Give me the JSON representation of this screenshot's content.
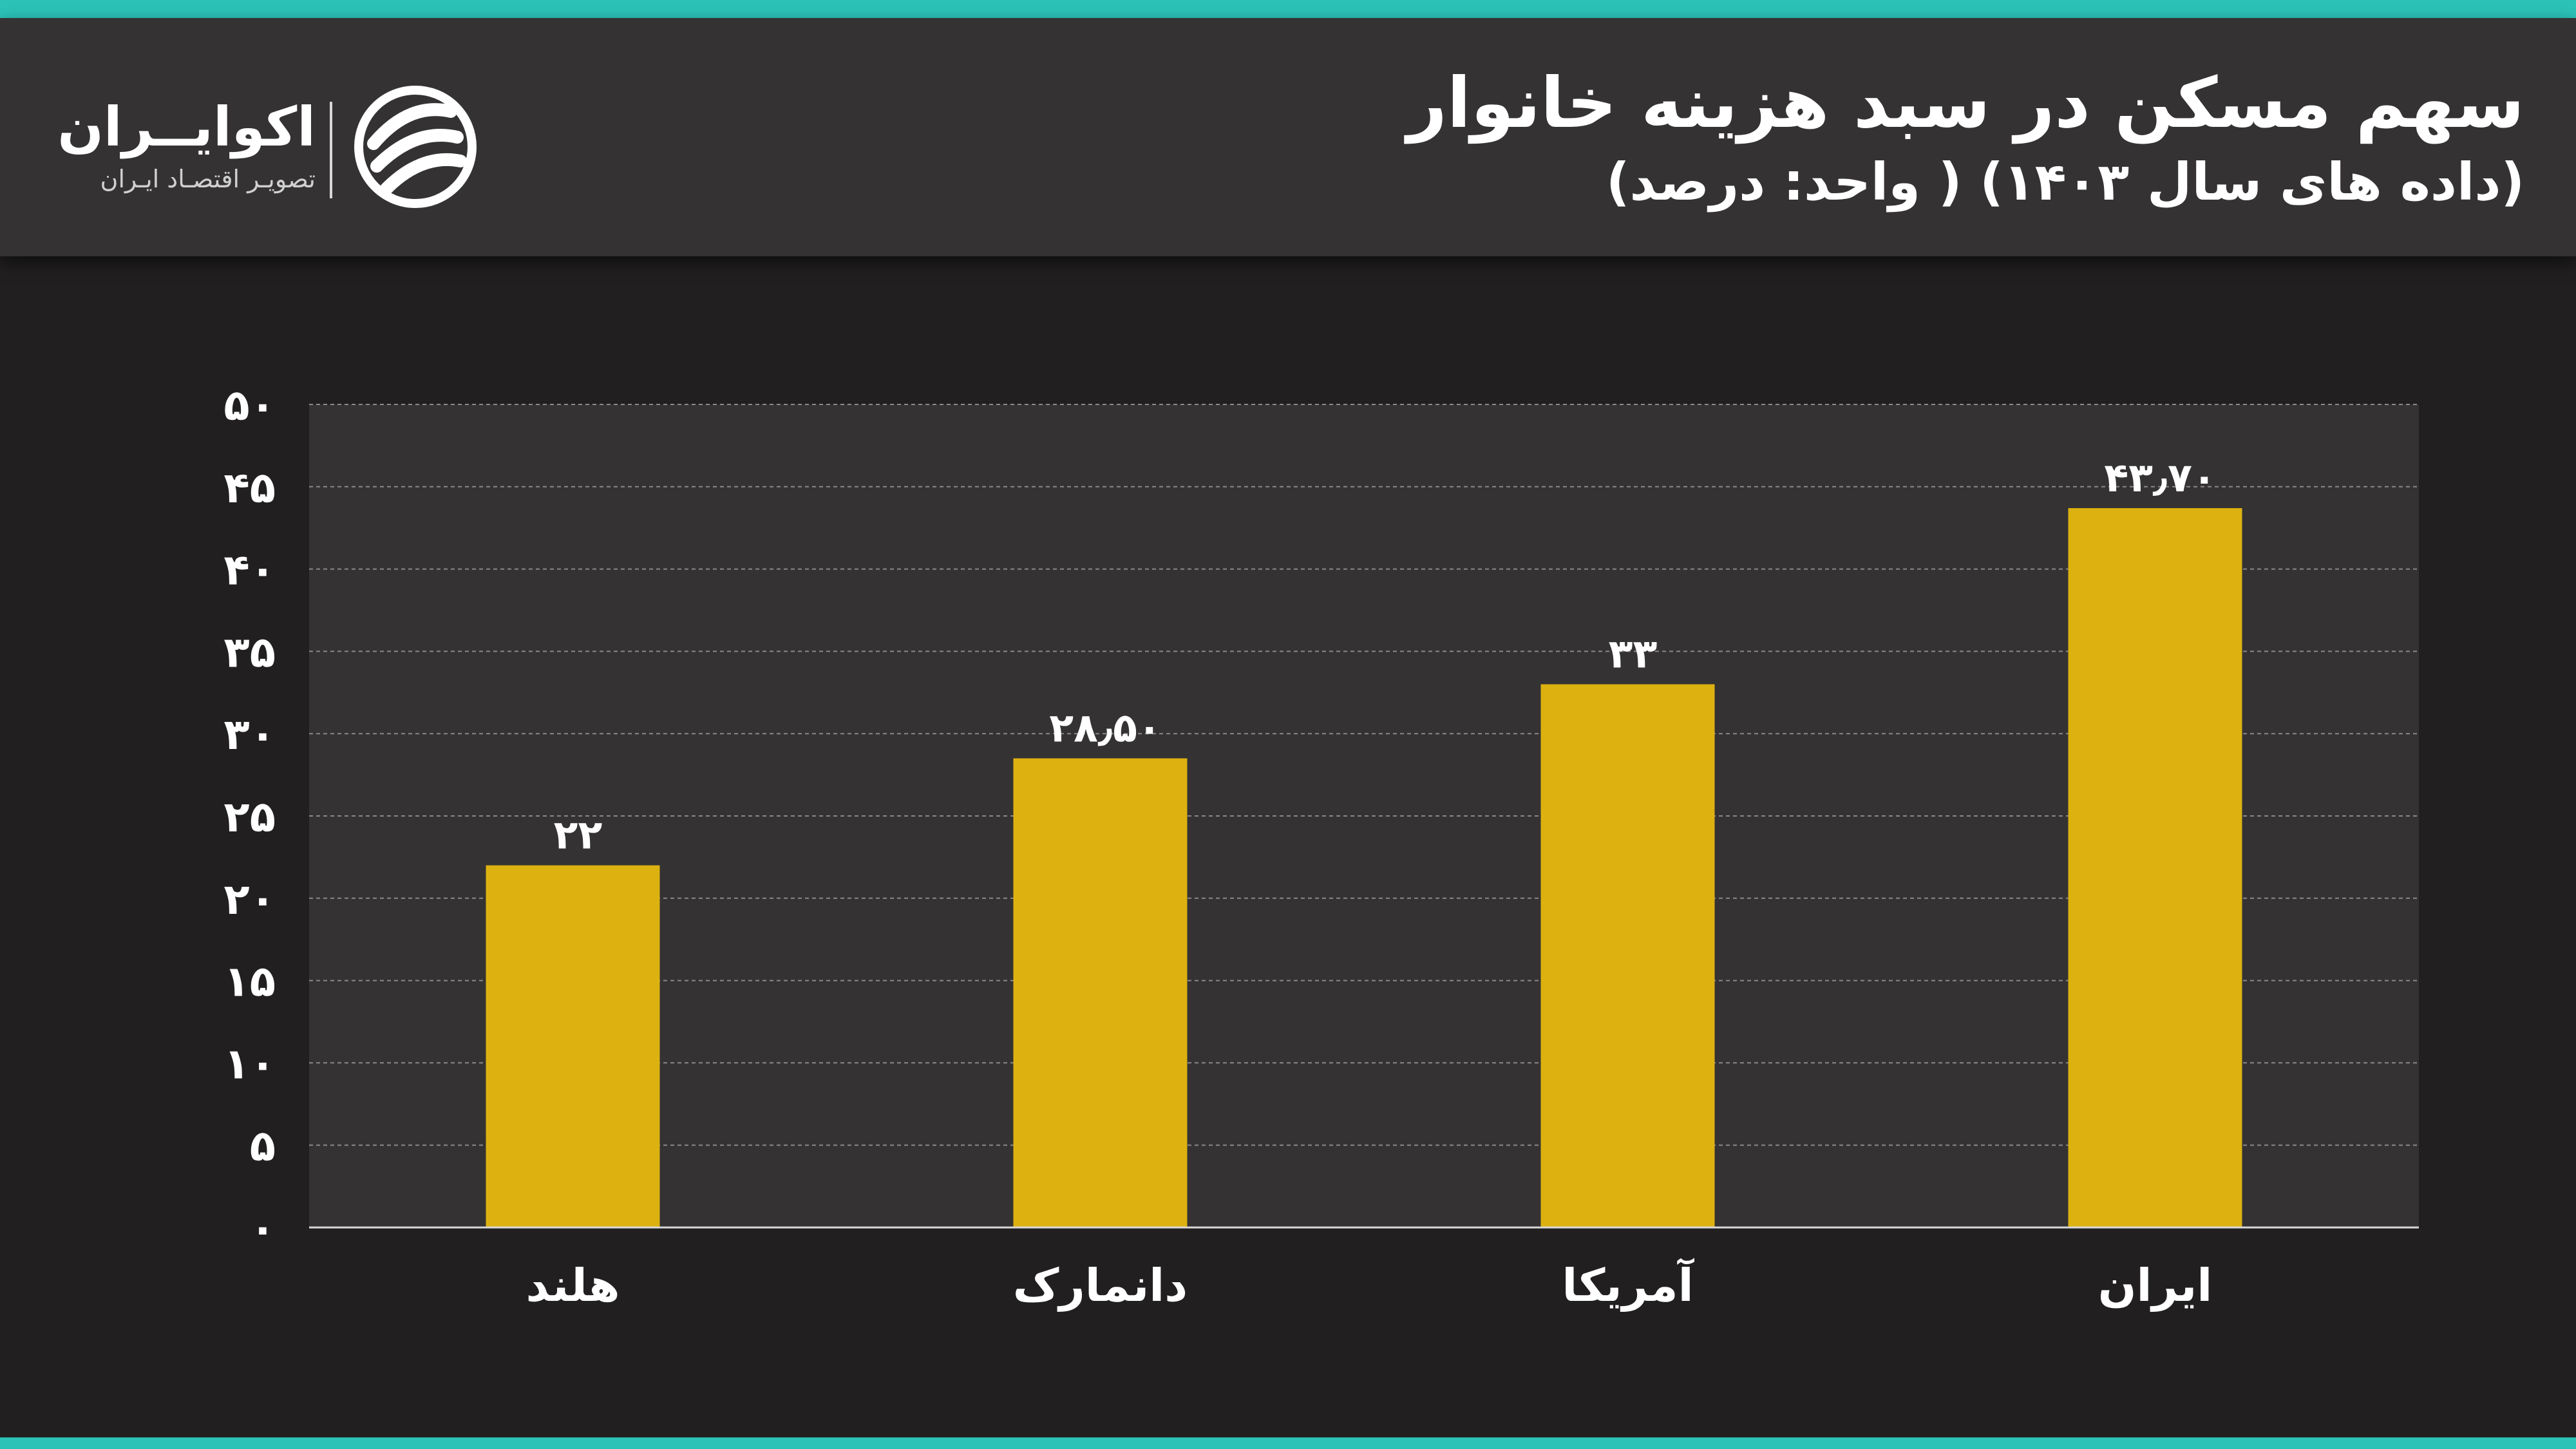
{
  "header": {
    "title": "سهم مسکن در سبد هزینه خانوار",
    "subtitle": "(داده های سال ۱۴۰۳) ( واحد: درصد)"
  },
  "logo": {
    "name": "اکوایــران",
    "tagline": "تصویـر اقتصـاد ایـران"
  },
  "colors": {
    "accent": "#2cc2b8",
    "bar": "#ddb210",
    "background": "#211f20",
    "plot_background": "#343233"
  },
  "chart_data": {
    "type": "bar",
    "title": "سهم مسکن در سبد هزینه خانوار",
    "categories": [
      "هلند",
      "دانمارک",
      "آمریکا",
      "ایران"
    ],
    "values": [
      22,
      28.5,
      33,
      43.7
    ],
    "value_labels": [
      "۲۲",
      "۲۸٫۵۰",
      "۳۳",
      "۴۳٫۷۰"
    ],
    "ylim": [
      0,
      50
    ],
    "y_ticks": [
      0,
      5,
      10,
      15,
      20,
      25,
      30,
      35,
      40,
      45,
      50
    ],
    "y_tick_labels": [
      "۰",
      "۵",
      "۱۰",
      "۱۵",
      "۲۰",
      "۲۵",
      "۳۰",
      "۳۵",
      "۴۰",
      "۴۵",
      "۵۰"
    ],
    "grid": true,
    "xlabel": "",
    "ylabel": ""
  }
}
